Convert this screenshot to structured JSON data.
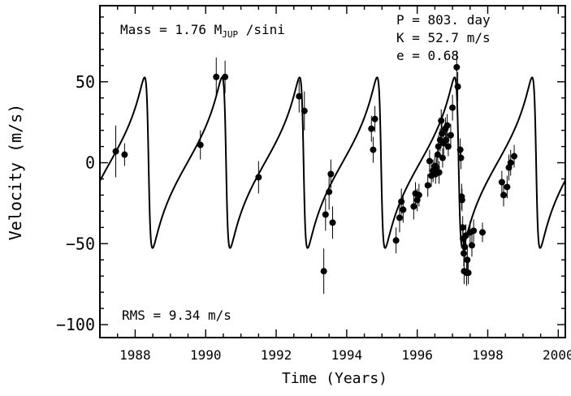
{
  "chart_data": {
    "type": "scatter",
    "title": "",
    "xlabel": "Time  (Years)",
    "ylabel": "Velocity  (m/s)",
    "xlim": [
      1987.0,
      2000.2
    ],
    "ylim": [
      -108,
      97
    ],
    "xticks": [
      {
        "value": 1988,
        "label": "1988"
      },
      {
        "value": 1990,
        "label": "1990"
      },
      {
        "value": 1992,
        "label": "1992"
      },
      {
        "value": 1994,
        "label": "1994"
      },
      {
        "value": 1996,
        "label": "1996"
      },
      {
        "value": 1998,
        "label": "1998"
      },
      {
        "value": 2000,
        "label": "2000"
      }
    ],
    "yticks": [
      {
        "value": 50,
        "label": "50"
      },
      {
        "value": 0,
        "label": "0"
      },
      {
        "value": -50,
        "label": "−50"
      },
      {
        "value": -100,
        "label": "−100"
      }
    ],
    "annotations": {
      "mass": "Mass = 1.76 M",
      "mass_sub": "JUP",
      "mass_tail": " /sini",
      "period": "P = 803. day",
      "amplitude": "K = 52.7 m/s",
      "eccentricity": "e = 0.68",
      "rms": "RMS = 9.34 m/s"
    },
    "orbit_model": {
      "name": "Keplerian fit",
      "period_years": 2.1985,
      "semi_amplitude": 52.7,
      "eccentricity": 0.68,
      "peri_years": [
        1988.38,
        1990.58,
        1992.78,
        1994.98,
        1997.18,
        1999.38
      ]
    },
    "series": [
      {
        "name": "Observations",
        "points": [
          {
            "x": 1987.45,
            "y": 7,
            "err": 16
          },
          {
            "x": 1987.7,
            "y": 5,
            "err": 7
          },
          {
            "x": 1989.85,
            "y": 11,
            "err": 9
          },
          {
            "x": 1990.3,
            "y": 53,
            "err": 12
          },
          {
            "x": 1990.55,
            "y": 53,
            "err": 10
          },
          {
            "x": 1991.5,
            "y": -9,
            "err": 10
          },
          {
            "x": 1992.65,
            "y": 41,
            "err": 10
          },
          {
            "x": 1992.8,
            "y": 32,
            "err": 12
          },
          {
            "x": 1993.35,
            "y": -67,
            "err": 14
          },
          {
            "x": 1993.4,
            "y": -32,
            "err": 10
          },
          {
            "x": 1993.5,
            "y": -18,
            "err": 11
          },
          {
            "x": 1993.55,
            "y": -7,
            "err": 9
          },
          {
            "x": 1993.6,
            "y": -37,
            "err": 10
          },
          {
            "x": 1994.7,
            "y": 21,
            "err": 8
          },
          {
            "x": 1994.75,
            "y": 8,
            "err": 8
          },
          {
            "x": 1994.8,
            "y": 27,
            "err": 8
          },
          {
            "x": 1995.4,
            "y": -48,
            "err": 8
          },
          {
            "x": 1995.5,
            "y": -34,
            "err": 9
          },
          {
            "x": 1995.55,
            "y": -24,
            "err": 8
          },
          {
            "x": 1995.6,
            "y": -29,
            "err": 8
          },
          {
            "x": 1995.9,
            "y": -27,
            "err": 8
          },
          {
            "x": 1995.95,
            "y": -19,
            "err": 7
          },
          {
            "x": 1996.0,
            "y": -23,
            "err": 7
          },
          {
            "x": 1996.05,
            "y": -20,
            "err": 7
          },
          {
            "x": 1996.3,
            "y": -14,
            "err": 7
          },
          {
            "x": 1996.35,
            "y": 1,
            "err": 7
          },
          {
            "x": 1996.4,
            "y": -8,
            "err": 7
          },
          {
            "x": 1996.45,
            "y": -5,
            "err": 7
          },
          {
            "x": 1996.5,
            "y": -2,
            "err": 7
          },
          {
            "x": 1996.52,
            "y": -7,
            "err": 6
          },
          {
            "x": 1996.55,
            "y": -3,
            "err": 6
          },
          {
            "x": 1996.58,
            "y": 5,
            "err": 7
          },
          {
            "x": 1996.6,
            "y": 10,
            "err": 7
          },
          {
            "x": 1996.62,
            "y": -6,
            "err": 7
          },
          {
            "x": 1996.65,
            "y": 14,
            "err": 7
          },
          {
            "x": 1996.68,
            "y": 26,
            "err": 7
          },
          {
            "x": 1996.7,
            "y": 18,
            "err": 7
          },
          {
            "x": 1996.72,
            "y": 3,
            "err": 6
          },
          {
            "x": 1996.75,
            "y": 12,
            "err": 7
          },
          {
            "x": 1996.8,
            "y": 21,
            "err": 7
          },
          {
            "x": 1996.82,
            "y": 14,
            "err": 6
          },
          {
            "x": 1996.85,
            "y": 23,
            "err": 7
          },
          {
            "x": 1996.88,
            "y": 10,
            "err": 6
          },
          {
            "x": 1996.95,
            "y": 17,
            "err": 7
          },
          {
            "x": 1997.0,
            "y": 34,
            "err": 8
          },
          {
            "x": 1997.12,
            "y": 59,
            "err": 10
          },
          {
            "x": 1997.15,
            "y": 47,
            "err": 9
          },
          {
            "x": 1997.22,
            "y": 8,
            "err": 7
          },
          {
            "x": 1997.24,
            "y": 3,
            "err": 7
          },
          {
            "x": 1997.26,
            "y": -21,
            "err": 8
          },
          {
            "x": 1997.27,
            "y": -23,
            "err": 7
          },
          {
            "x": 1997.29,
            "y": -40,
            "err": 7
          },
          {
            "x": 1997.3,
            "y": -47,
            "err": 7
          },
          {
            "x": 1997.32,
            "y": -56,
            "err": 8
          },
          {
            "x": 1997.33,
            "y": -67,
            "err": 8
          },
          {
            "x": 1997.35,
            "y": -52,
            "err": 7
          },
          {
            "x": 1997.38,
            "y": -45,
            "err": 7
          },
          {
            "x": 1997.4,
            "y": -68,
            "err": 8
          },
          {
            "x": 1997.42,
            "y": -60,
            "err": 7
          },
          {
            "x": 1997.45,
            "y": -68,
            "err": 7
          },
          {
            "x": 1997.5,
            "y": -43,
            "err": 7
          },
          {
            "x": 1997.55,
            "y": -51,
            "err": 7
          },
          {
            "x": 1997.6,
            "y": -42,
            "err": 7
          },
          {
            "x": 1997.85,
            "y": -43,
            "err": 6
          },
          {
            "x": 1998.4,
            "y": -12,
            "err": 7
          },
          {
            "x": 1998.45,
            "y": -20,
            "err": 7
          },
          {
            "x": 1998.55,
            "y": -15,
            "err": 7
          },
          {
            "x": 1998.6,
            "y": -3,
            "err": 8
          },
          {
            "x": 1998.65,
            "y": 0,
            "err": 8
          },
          {
            "x": 1998.75,
            "y": 4,
            "err": 7
          }
        ]
      }
    ]
  }
}
